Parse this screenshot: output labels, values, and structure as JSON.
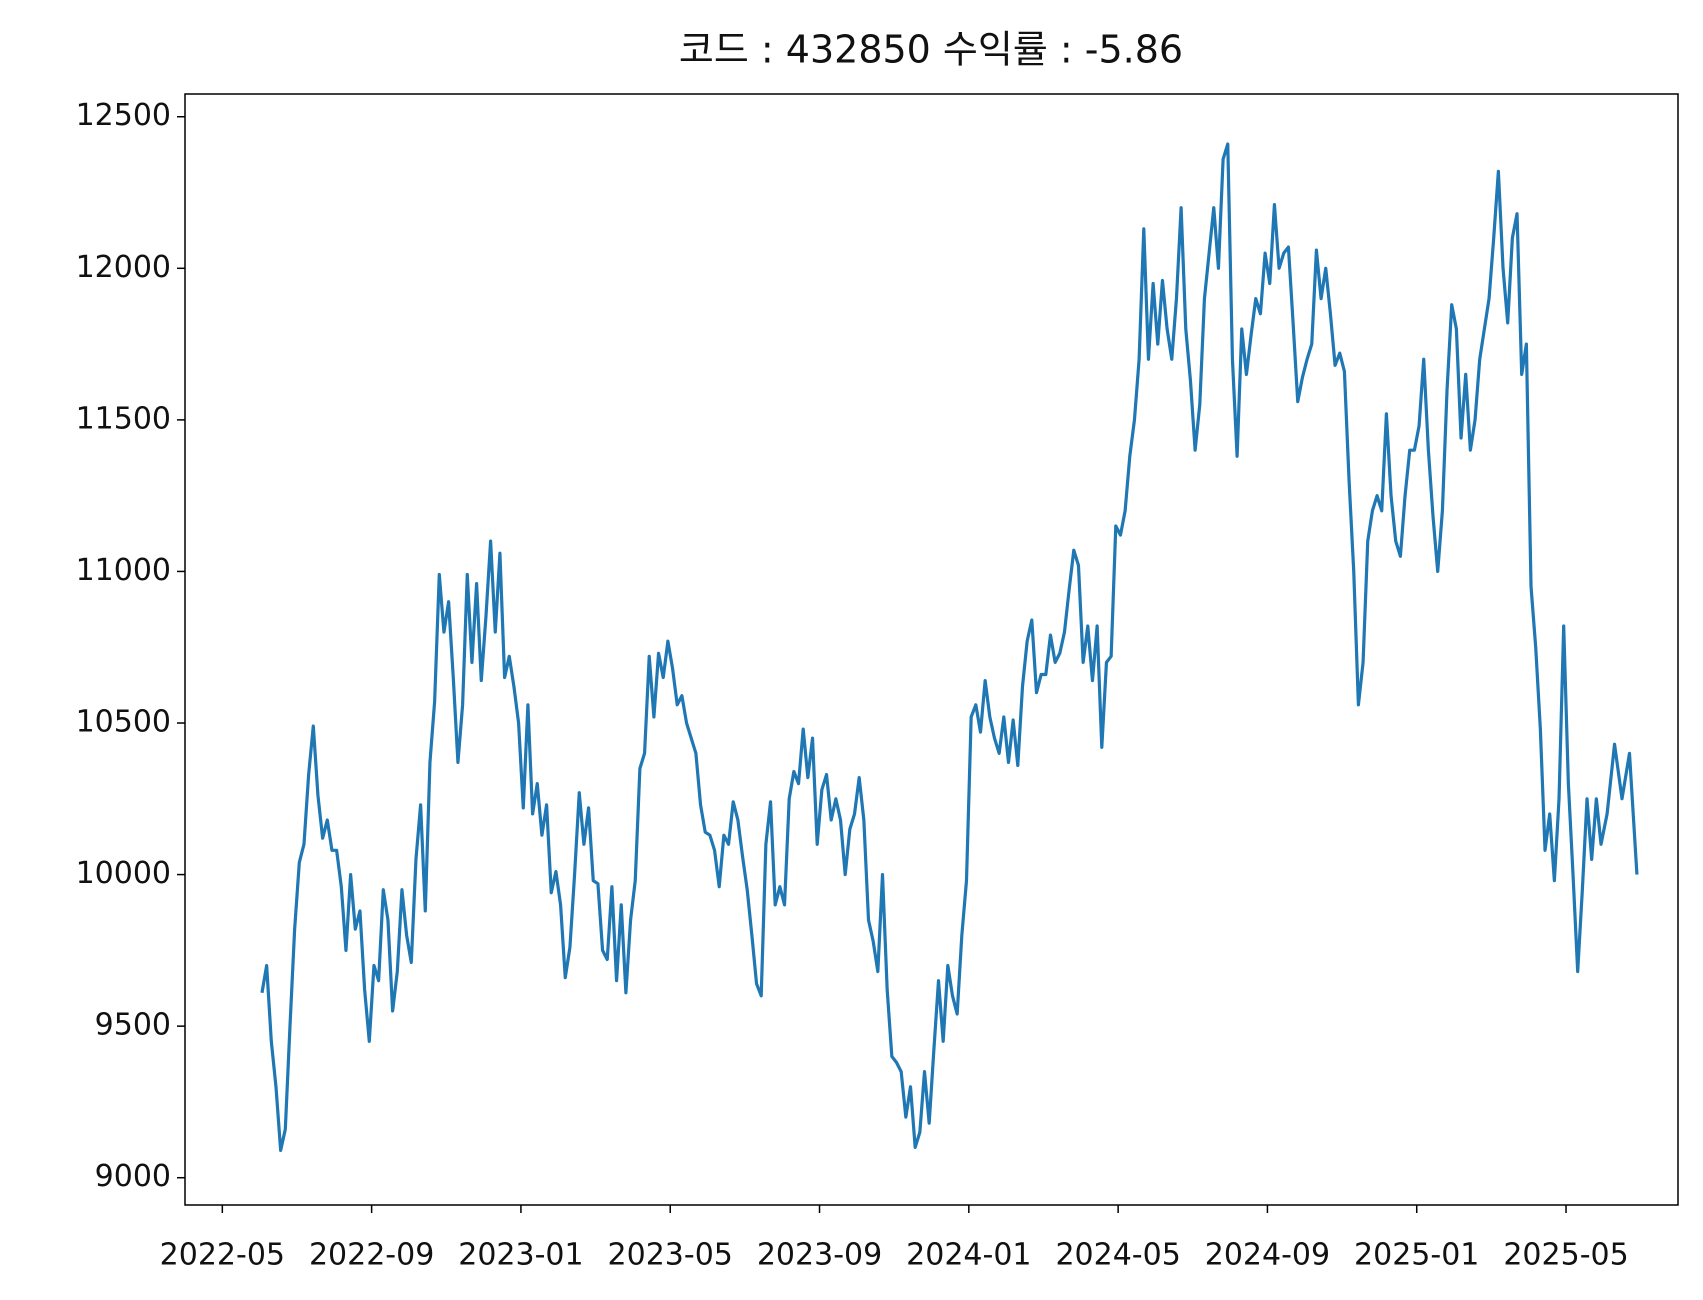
{
  "chart_data": {
    "type": "line",
    "title": "코드 : 432850 수익률 : -5.86",
    "x": [
      "2022-06",
      "2022-06",
      "2022-06",
      "2022-06",
      "2022-06",
      "2022-06",
      "2022-06",
      "2022-06",
      "2022-07",
      "2022-07",
      "2022-07",
      "2022-07",
      "2022-07",
      "2022-07",
      "2022-07",
      "2022-07",
      "2022-08",
      "2022-08",
      "2022-08",
      "2022-08",
      "2022-08",
      "2022-08",
      "2022-08",
      "2022-08",
      "2022-09",
      "2022-09",
      "2022-09",
      "2022-09",
      "2022-09",
      "2022-09",
      "2022-09",
      "2022-09",
      "2022-10",
      "2022-10",
      "2022-10",
      "2022-10",
      "2022-10",
      "2022-10",
      "2022-10",
      "2022-10",
      "2022-11",
      "2022-11",
      "2022-11",
      "2022-11",
      "2022-11",
      "2022-11",
      "2022-11",
      "2022-11",
      "2022-12",
      "2022-12",
      "2022-12",
      "2022-12",
      "2022-12",
      "2022-12",
      "2022-12",
      "2022-12",
      "2023-01",
      "2023-01",
      "2023-01",
      "2023-01",
      "2023-01",
      "2023-01",
      "2023-01",
      "2023-01",
      "2023-02",
      "2023-02",
      "2023-02",
      "2023-02",
      "2023-02",
      "2023-02",
      "2023-02",
      "2023-02",
      "2023-03",
      "2023-03",
      "2023-03",
      "2023-03",
      "2023-03",
      "2023-03",
      "2023-03",
      "2023-03",
      "2023-04",
      "2023-04",
      "2023-04",
      "2023-04",
      "2023-04",
      "2023-04",
      "2023-04",
      "2023-04",
      "2023-05",
      "2023-05",
      "2023-05",
      "2023-05",
      "2023-05",
      "2023-05",
      "2023-05",
      "2023-05",
      "2023-06",
      "2023-06",
      "2023-06",
      "2023-06",
      "2023-06",
      "2023-06",
      "2023-06",
      "2023-06",
      "2023-07",
      "2023-07",
      "2023-07",
      "2023-07",
      "2023-07",
      "2023-07",
      "2023-07",
      "2023-07",
      "2023-08",
      "2023-08",
      "2023-08",
      "2023-08",
      "2023-08",
      "2023-08",
      "2023-08",
      "2023-08",
      "2023-09",
      "2023-09",
      "2023-09",
      "2023-09",
      "2023-09",
      "2023-09",
      "2023-09",
      "2023-09",
      "2023-10",
      "2023-10",
      "2023-10",
      "2023-10",
      "2023-10",
      "2023-10",
      "2023-10",
      "2023-10",
      "2023-11",
      "2023-11",
      "2023-11",
      "2023-11",
      "2023-11",
      "2023-11",
      "2023-11",
      "2023-11",
      "2023-12",
      "2023-12",
      "2023-12",
      "2023-12",
      "2023-12",
      "2023-12",
      "2023-12",
      "2023-12",
      "2024-01",
      "2024-01",
      "2024-01",
      "2024-01",
      "2024-01",
      "2024-01",
      "2024-01",
      "2024-01",
      "2024-02",
      "2024-02",
      "2024-02",
      "2024-02",
      "2024-02",
      "2024-02",
      "2024-02",
      "2024-02",
      "2024-03",
      "2024-03",
      "2024-03",
      "2024-03",
      "2024-03",
      "2024-03",
      "2024-03",
      "2024-03",
      "2024-04",
      "2024-04",
      "2024-04",
      "2024-04",
      "2024-04",
      "2024-04",
      "2024-04",
      "2024-04",
      "2024-05",
      "2024-05",
      "2024-05",
      "2024-05",
      "2024-05",
      "2024-05",
      "2024-05",
      "2024-05",
      "2024-06",
      "2024-06",
      "2024-06",
      "2024-06",
      "2024-06",
      "2024-06",
      "2024-06",
      "2024-06",
      "2024-07",
      "2024-07",
      "2024-07",
      "2024-07",
      "2024-07",
      "2024-07",
      "2024-07",
      "2024-07",
      "2024-08",
      "2024-08",
      "2024-08",
      "2024-08",
      "2024-08",
      "2024-08",
      "2024-08",
      "2024-08",
      "2024-09",
      "2024-09",
      "2024-09",
      "2024-09",
      "2024-09",
      "2024-09",
      "2024-09",
      "2024-09",
      "2024-10",
      "2024-10",
      "2024-10",
      "2024-10",
      "2024-10",
      "2024-10",
      "2024-10",
      "2024-10",
      "2024-11",
      "2024-11",
      "2024-11",
      "2024-11",
      "2024-11",
      "2024-11",
      "2024-11",
      "2024-11",
      "2024-12",
      "2024-12",
      "2024-12",
      "2024-12",
      "2024-12",
      "2024-12",
      "2024-12",
      "2024-12",
      "2025-01",
      "2025-01",
      "2025-01",
      "2025-01",
      "2025-01",
      "2025-01",
      "2025-01",
      "2025-01",
      "2025-02",
      "2025-02",
      "2025-02",
      "2025-02",
      "2025-02",
      "2025-02",
      "2025-02",
      "2025-02",
      "2025-03",
      "2025-03",
      "2025-03",
      "2025-03",
      "2025-03",
      "2025-03",
      "2025-03",
      "2025-03",
      "2025-04",
      "2025-04",
      "2025-04",
      "2025-04",
      "2025-04",
      "2025-04",
      "2025-04",
      "2025-04",
      "2025-05",
      "2025-05",
      "2025-05",
      "2025-05",
      "2025-05",
      "2025-05",
      "2025-05",
      "2025-05",
      "2025-06",
      "2025-06",
      "2025-06",
      "2025-06",
      "2025-06"
    ],
    "series": [
      {
        "color": "#1f77b4",
        "values": [
          9610,
          9700,
          9450,
          9300,
          9090,
          9160,
          9500,
          9820,
          10040,
          10100,
          10330,
          10490,
          10260,
          10120,
          10180,
          10080,
          10080,
          9960,
          9750,
          10000,
          9820,
          9880,
          9620,
          9450,
          9700,
          9650,
          9950,
          9850,
          9550,
          9680,
          9950,
          9800,
          9710,
          10050,
          10230,
          9880,
          10370,
          10570,
          10990,
          10800,
          10900,
          10650,
          10370,
          10560,
          10990,
          10700,
          10960,
          10640,
          10850,
          11100,
          10800,
          11060,
          10650,
          10720,
          10620,
          10500,
          10220,
          10560,
          10200,
          10300,
          10130,
          10230,
          9940,
          10010,
          9900,
          9660,
          9760,
          10000,
          10270,
          10100,
          10220,
          9980,
          9970,
          9750,
          9720,
          9960,
          9650,
          9900,
          9610,
          9850,
          9980,
          10350,
          10400,
          10720,
          10520,
          10730,
          10650,
          10770,
          10680,
          10560,
          10590,
          10500,
          10450,
          10400,
          10230,
          10140,
          10130,
          10080,
          9960,
          10130,
          10100,
          10240,
          10180,
          10060,
          9950,
          9800,
          9640,
          9600,
          10100,
          10240,
          9900,
          9960,
          9900,
          10250,
          10340,
          10300,
          10480,
          10320,
          10450,
          10100,
          10280,
          10330,
          10180,
          10250,
          10180,
          10000,
          10150,
          10200,
          10320,
          10180,
          9850,
          9780,
          9680,
          10000,
          9620,
          9400,
          9380,
          9350,
          9200,
          9300,
          9100,
          9150,
          9350,
          9180,
          9420,
          9650,
          9450,
          9700,
          9600,
          9540,
          9800,
          9980,
          10520,
          10560,
          10470,
          10640,
          10520,
          10450,
          10400,
          10520,
          10370,
          10510,
          10360,
          10620,
          10770,
          10840,
          10600,
          10660,
          10660,
          10790,
          10700,
          10730,
          10800,
          10940,
          11070,
          11020,
          10700,
          10820,
          10640,
          10820,
          10420,
          10700,
          10720,
          11150,
          11120,
          11200,
          11380,
          11500,
          11700,
          12130,
          11700,
          11950,
          11750,
          11960,
          11800,
          11700,
          11900,
          12200,
          11800,
          11630,
          11400,
          11550,
          11900,
          12050,
          12200,
          12000,
          12360,
          12410,
          11700,
          11380,
          11800,
          11650,
          11780,
          11900,
          11850,
          12050,
          11950,
          12210,
          12000,
          12050,
          12070,
          11820,
          11560,
          11640,
          11700,
          11750,
          12060,
          11900,
          12000,
          11850,
          11680,
          11720,
          11660,
          11300,
          11000,
          10560,
          10700,
          11100,
          11200,
          11250,
          11200,
          11520,
          11250,
          11100,
          11050,
          11250,
          11400,
          11400,
          11480,
          11700,
          11400,
          11180,
          11000,
          11200,
          11600,
          11880,
          11800,
          11440,
          11650,
          11400,
          11500,
          11700,
          11800,
          11900,
          12100,
          12320,
          12000,
          11820,
          12100,
          12180,
          11650,
          11750,
          10950,
          10750,
          10480,
          10080,
          10200,
          9980,
          10250,
          10820,
          10300,
          10000,
          9680,
          9950,
          10250,
          10050,
          10250,
          10100,
          10200,
          10430,
          10250,
          10400,
          10000
        ]
      }
    ],
    "xlim": [
      "2022-04",
      "2025-08"
    ],
    "xticks": [
      "2022-05",
      "2022-09",
      "2023-01",
      "2023-05",
      "2023-09",
      "2024-01",
      "2024-05",
      "2024-09",
      "2025-01",
      "2025-05"
    ],
    "ylim": [
      8910,
      12575
    ],
    "yticks": [
      9000,
      9500,
      10000,
      10500,
      11000,
      11500,
      12000,
      12500
    ],
    "grid": false
  }
}
